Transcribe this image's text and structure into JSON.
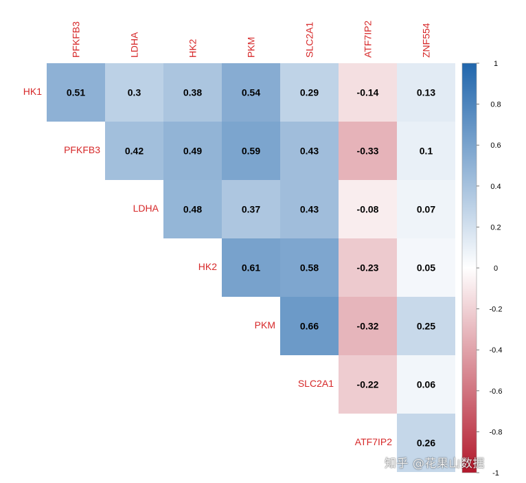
{
  "chart_data": {
    "type": "heatmap",
    "subtype": "upper-triangular correlation matrix",
    "title": "",
    "row_labels": [
      "HK1",
      "PFKFB3",
      "LDHA",
      "HK2",
      "PKM",
      "SLC2A1",
      "ATF7IP2"
    ],
    "col_labels": [
      "PFKFB3",
      "LDHA",
      "HK2",
      "PKM",
      "SLC2A1",
      "ATF7IP2",
      "ZNF554"
    ],
    "values": [
      [
        0.51,
        0.3,
        0.38,
        0.54,
        0.29,
        -0.14,
        0.13
      ],
      [
        null,
        0.42,
        0.49,
        0.59,
        0.43,
        -0.33,
        0.1
      ],
      [
        null,
        null,
        0.48,
        0.37,
        0.43,
        -0.08,
        0.07
      ],
      [
        null,
        null,
        null,
        0.61,
        0.58,
        -0.23,
        0.05
      ],
      [
        null,
        null,
        null,
        null,
        0.66,
        -0.32,
        0.25
      ],
      [
        null,
        null,
        null,
        null,
        null,
        -0.22,
        0.06
      ],
      [
        null,
        null,
        null,
        null,
        null,
        null,
        0.26
      ]
    ],
    "value_labels": [
      [
        "0.51",
        "0.3",
        "0.38",
        "0.54",
        "0.29",
        "-0.14",
        "0.13"
      ],
      [
        null,
        "0.42",
        "0.49",
        "0.59",
        "0.43",
        "-0.33",
        "0.1"
      ],
      [
        null,
        null,
        "0.48",
        "0.37",
        "0.43",
        "-0.08",
        "0.07"
      ],
      [
        null,
        null,
        null,
        "0.61",
        "0.58",
        "-0.23",
        "0.05"
      ],
      [
        null,
        null,
        null,
        null,
        "0.66",
        "-0.32",
        "0.25"
      ],
      [
        null,
        null,
        null,
        null,
        null,
        "-0.22",
        "0.06"
      ],
      [
        null,
        null,
        null,
        null,
        null,
        null,
        "0.26"
      ]
    ],
    "color_scale": {
      "range": [
        -1,
        1
      ],
      "low_color": "#B2182B",
      "mid_color": "#FFFFFF",
      "high_color": "#2166AC",
      "ticks": [
        1,
        0.8,
        0.6,
        0.4,
        0.2,
        0,
        -0.2,
        -0.4,
        -0.6,
        -0.8,
        -1
      ],
      "tick_labels": [
        "1",
        "0.8",
        "0.6",
        "0.4",
        "0.2",
        "0",
        "-0.2",
        "-0.4",
        "-0.6",
        "-0.8",
        "-1"
      ]
    },
    "label_color": "#D62728",
    "legend_position": "right"
  },
  "watermark": "知乎 @花果山数据"
}
